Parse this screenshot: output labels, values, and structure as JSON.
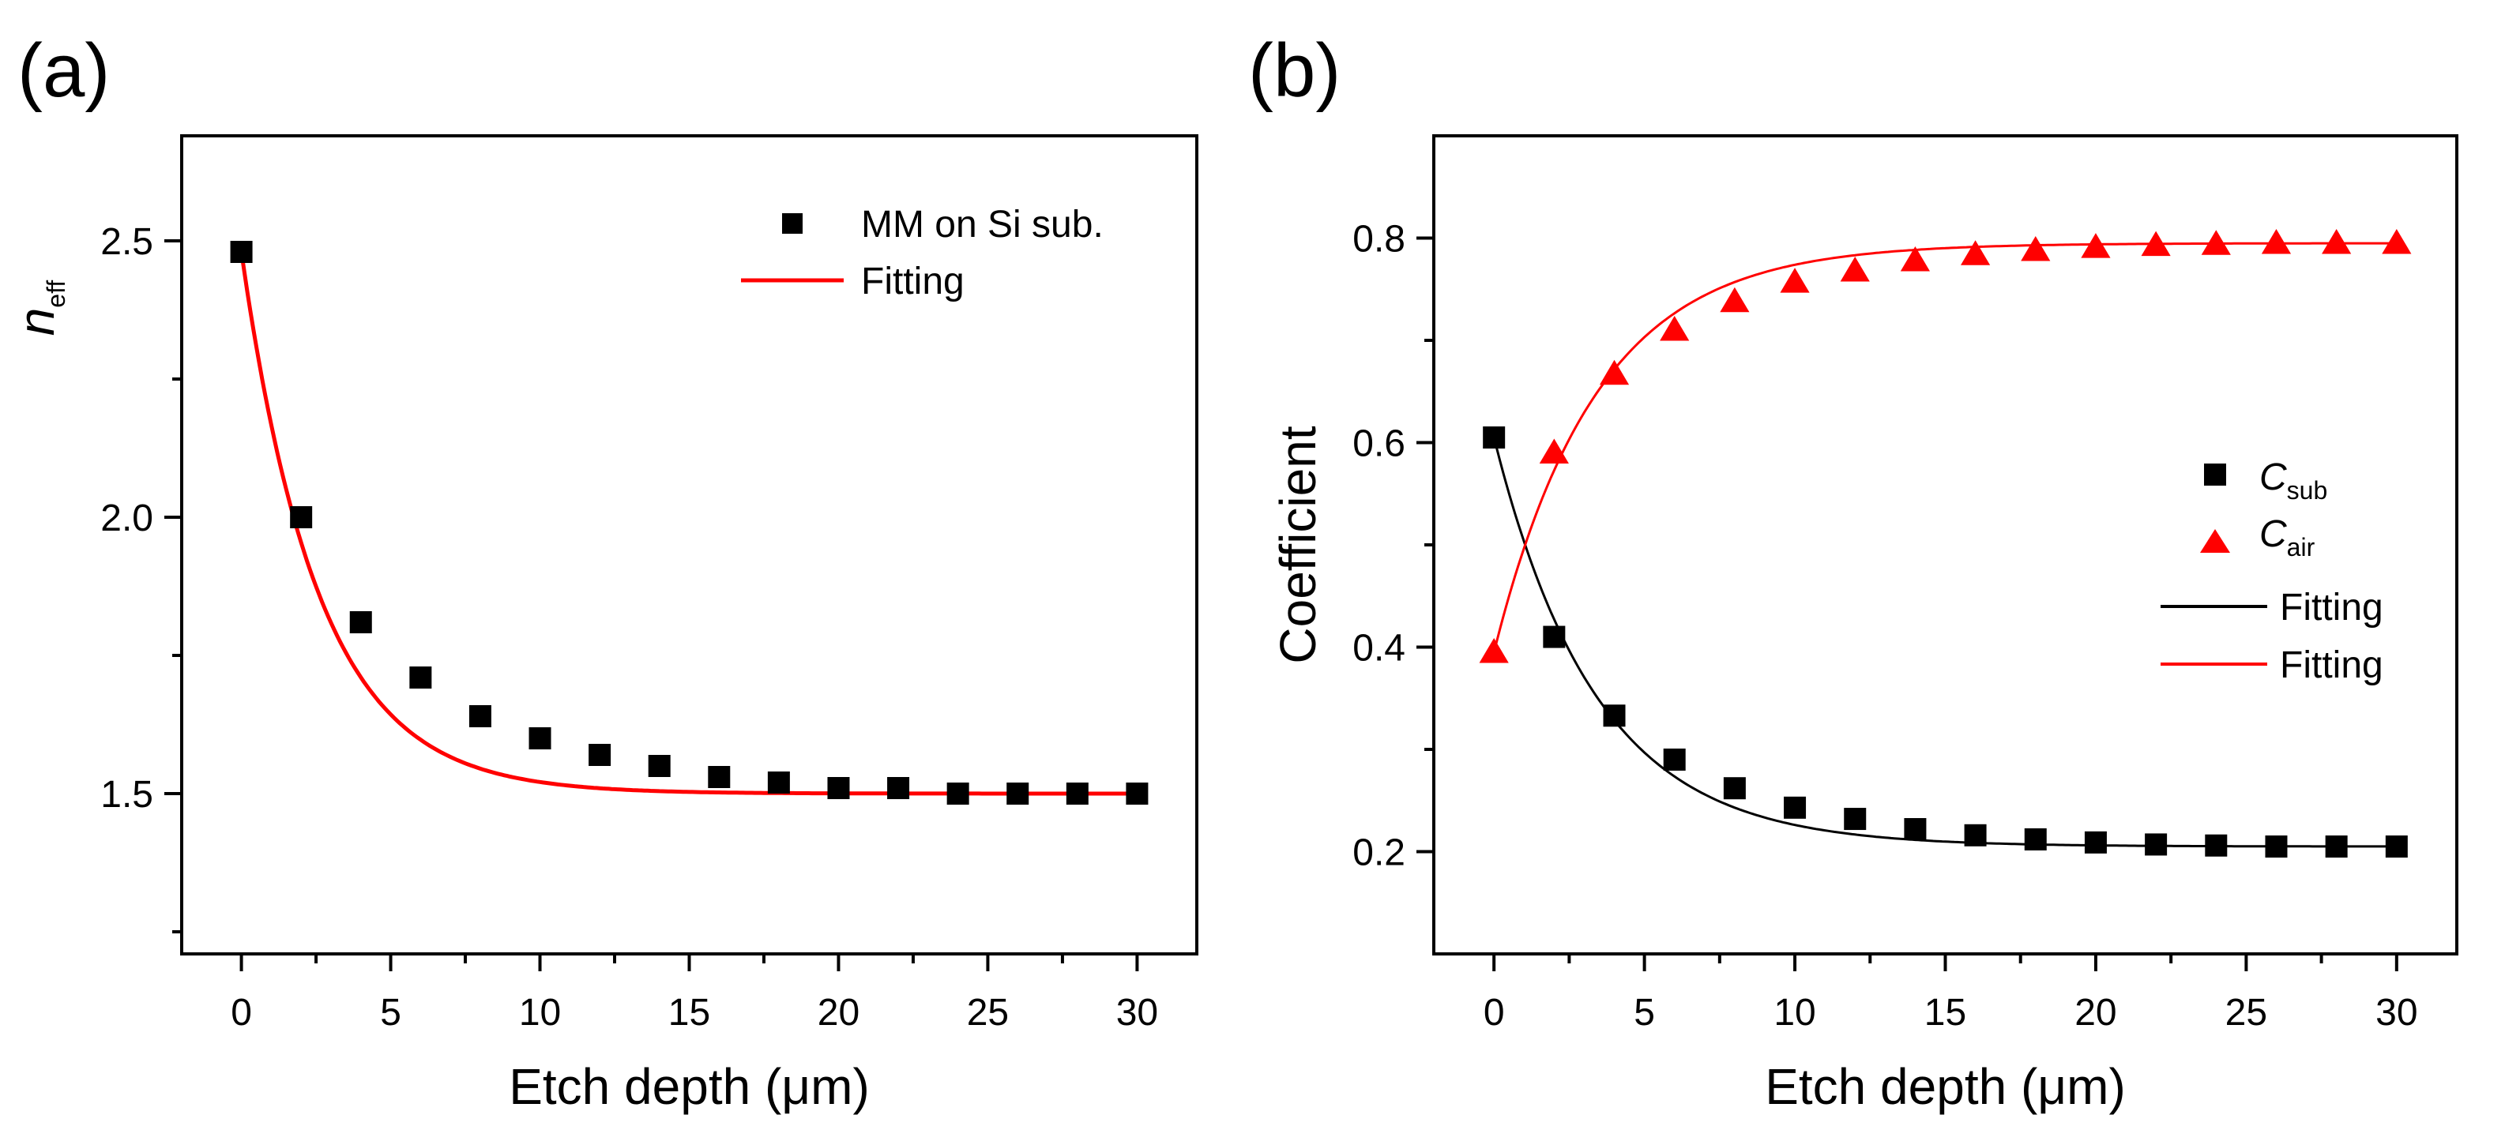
{
  "chart_data": [
    {
      "panel": "(a)",
      "type": "scatter",
      "xlabel": "Etch depth (μm)",
      "ylabel_main": "n",
      "ylabel_sub": "eff",
      "xlim": [
        -2,
        32
      ],
      "ylim": [
        1.21,
        2.69
      ],
      "xticks": [
        0,
        5,
        10,
        15,
        20,
        25,
        30
      ],
      "xtick_labels": [
        "0",
        "5",
        "10",
        "15",
        "20",
        "25",
        "30"
      ],
      "yticks": [
        1.5,
        2.0,
        2.5
      ],
      "ytick_labels": [
        "1.5",
        "2.0",
        "2.5"
      ],
      "y_minor_ticks": [
        1.25,
        1.75,
        2.25,
        2.5
      ],
      "legend_position": "top-right",
      "series": [
        {
          "name": "MM on Si sub.",
          "kind": "markers",
          "marker": "square",
          "color": "#000000",
          "x": [
            0,
            2,
            4,
            6,
            8,
            10,
            12,
            14,
            16,
            18,
            20,
            22,
            24,
            26,
            28,
            30
          ],
          "y": [
            2.48,
            2.0,
            1.81,
            1.71,
            1.64,
            1.6,
            1.57,
            1.55,
            1.53,
            1.52,
            1.51,
            1.51,
            1.5,
            1.5,
            1.5,
            1.5
          ]
        },
        {
          "name": "Fitting",
          "kind": "line",
          "color": "#ff0000",
          "model": {
            "y0": 1.5,
            "A": 0.98,
            "t": 2.6
          }
        }
      ]
    },
    {
      "panel": "(b)",
      "type": "scatter",
      "xlabel": "Etch depth (μm)",
      "ylabel": "Coefficient",
      "xlim": [
        -2,
        32
      ],
      "ylim": [
        0.1,
        0.9
      ],
      "xticks": [
        0,
        5,
        10,
        15,
        20,
        25,
        30
      ],
      "xtick_labels": [
        "0",
        "5",
        "10",
        "15",
        "20",
        "25",
        "30"
      ],
      "yticks": [
        0.2,
        0.4,
        0.6,
        0.8
      ],
      "ytick_labels": [
        "0.2",
        "0.4",
        "0.6",
        "0.8"
      ],
      "y_minor_ticks": [
        0.3,
        0.5,
        0.7
      ],
      "legend_position": "right",
      "series": [
        {
          "name": "C",
          "name_sub": "sub",
          "kind": "markers",
          "marker": "square",
          "color": "#000000",
          "x": [
            0,
            2,
            4,
            6,
            8,
            10,
            12,
            14,
            16,
            18,
            20,
            22,
            24,
            26,
            28,
            30
          ],
          "y": [
            0.605,
            0.41,
            0.333,
            0.29,
            0.262,
            0.243,
            0.232,
            0.222,
            0.216,
            0.212,
            0.209,
            0.207,
            0.206,
            0.205,
            0.205,
            0.205
          ]
        },
        {
          "name": "C",
          "name_sub": "air",
          "kind": "markers",
          "marker": "triangle",
          "color": "#ff0000",
          "x": [
            0,
            2,
            4,
            6,
            8,
            10,
            12,
            14,
            16,
            18,
            20,
            22,
            24,
            26,
            28,
            30
          ],
          "y": [
            0.395,
            0.59,
            0.667,
            0.71,
            0.738,
            0.757,
            0.768,
            0.778,
            0.784,
            0.788,
            0.791,
            0.793,
            0.794,
            0.795,
            0.795,
            0.795
          ]
        },
        {
          "name": "Fitting",
          "kind": "line",
          "color": "#000000",
          "model": {
            "y0": 0.205,
            "A": 0.4,
            "t": 3.4
          }
        },
        {
          "name": "Fitting",
          "kind": "line",
          "color": "#ff0000",
          "model": {
            "y0": 0.795,
            "A": -0.4,
            "t": 3.4
          }
        }
      ]
    }
  ]
}
